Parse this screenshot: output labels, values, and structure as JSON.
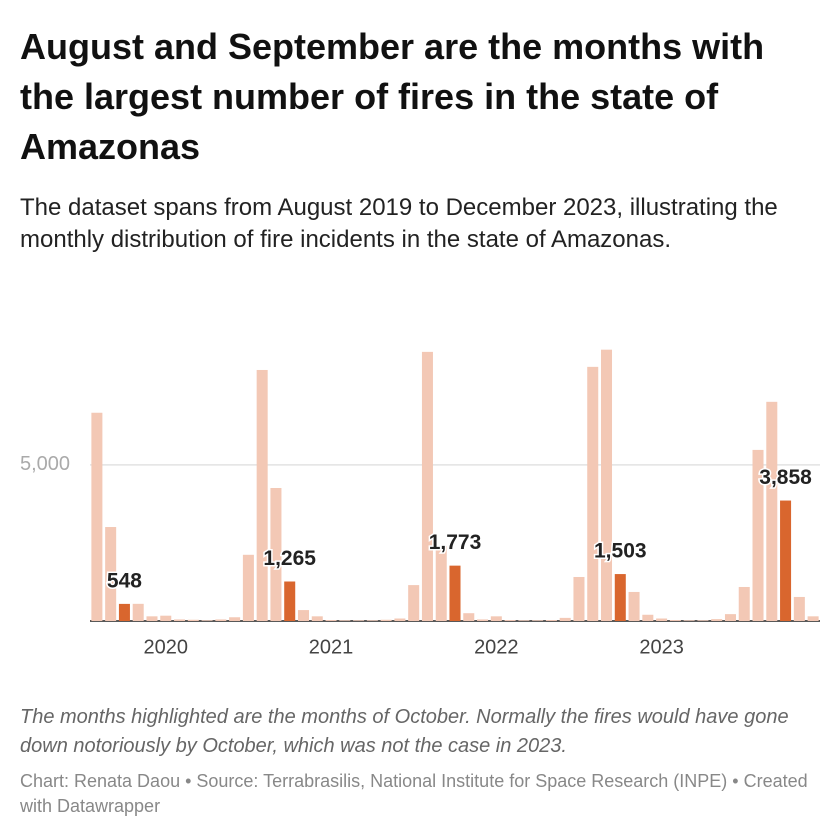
{
  "chart_data": {
    "type": "bar",
    "title": "August and September are the months with the largest number of fires in the state of Amazonas",
    "subtitle": "The dataset spans from August 2019 to December 2023, illustrating the monthly distribution of fire incidents in the state of Amazonas.",
    "note": "The months highlighted are the months of October. Normally the fires would have gone down notoriously by October, which was not the case in 2023.",
    "source": "Chart: Renata Daou • Source: Terrabrasilis, National Institute for Space Research (INPE) • Created with Datawrapper",
    "categories": [
      null,
      null,
      null,
      null,
      null,
      "2020",
      null,
      null,
      null,
      null,
      null,
      null,
      null,
      null,
      null,
      null,
      null,
      "2021",
      null,
      null,
      null,
      null,
      null,
      null,
      null,
      null,
      null,
      null,
      null,
      "2022",
      null,
      null,
      null,
      null,
      null,
      null,
      null,
      null,
      null,
      null,
      null,
      "2023",
      null,
      null,
      null,
      null,
      null,
      null,
      null,
      null,
      null,
      null,
      null
    ],
    "values": [
      6670,
      3010,
      548,
      550,
      150,
      170,
      50,
      40,
      20,
      50,
      120,
      2120,
      8040,
      4260,
      1265,
      350,
      150,
      30,
      20,
      20,
      20,
      40,
      80,
      1150,
      8620,
      2400,
      1773,
      250,
      50,
      150,
      30,
      20,
      20,
      30,
      100,
      1410,
      8140,
      8690,
      1503,
      930,
      200,
      80,
      30,
      20,
      20,
      60,
      220,
      1090,
      5480,
      7020,
      3858,
      770,
      150
    ],
    "value_labels": [
      null,
      null,
      "548",
      null,
      null,
      null,
      null,
      null,
      null,
      null,
      null,
      null,
      null,
      null,
      "1,265",
      null,
      null,
      null,
      null,
      null,
      null,
      null,
      null,
      null,
      null,
      null,
      "1,773",
      null,
      null,
      null,
      null,
      null,
      null,
      null,
      null,
      null,
      null,
      null,
      "1,503",
      null,
      null,
      null,
      null,
      null,
      null,
      null,
      null,
      null,
      null,
      null,
      "3,858",
      null,
      null
    ],
    "colors": [
      "#f3c8b5",
      "#f3c8b5",
      "#d9662e",
      "#f3c8b5",
      "#f3c8b5",
      "#f3c8b5",
      "#f3c8b5",
      "#f3c8b5",
      "#f3c8b5",
      "#f3c8b5",
      "#f3c8b5",
      "#f3c8b5",
      "#f3c8b5",
      "#f3c8b5",
      "#d9662e",
      "#f3c8b5",
      "#f3c8b5",
      "#f3c8b5",
      "#f3c8b5",
      "#f3c8b5",
      "#f3c8b5",
      "#f3c8b5",
      "#f3c8b5",
      "#f3c8b5",
      "#f3c8b5",
      "#f3c8b5",
      "#d9662e",
      "#f3c8b5",
      "#f3c8b5",
      "#f3c8b5",
      "#f3c8b5",
      "#f3c8b5",
      "#f3c8b5",
      "#f3c8b5",
      "#f3c8b5",
      "#f3c8b5",
      "#f3c8b5",
      "#f3c8b5",
      "#d9662e",
      "#f3c8b5",
      "#f3c8b5",
      "#f3c8b5",
      "#f3c8b5",
      "#f3c8b5",
      "#f3c8b5",
      "#f3c8b5",
      "#f3c8b5",
      "#f3c8b5",
      "#f3c8b5",
      "#f3c8b5",
      "#d9662e",
      "#f3c8b5",
      "#f3c8b5"
    ],
    "ylim": [
      0,
      9000
    ],
    "yticks": [
      {
        "value": 5000,
        "label": "5,000"
      }
    ],
    "grid": true
  }
}
